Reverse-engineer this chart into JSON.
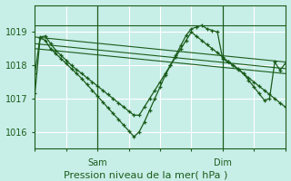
{
  "bg_color": "#c8eee8",
  "grid_color": "#ffffff",
  "line_color": "#1a5c1a",
  "marker_color": "#1a5c1a",
  "xlabel": "Pression niveau de la mer( hPa )",
  "xlabel_fontsize": 8,
  "yticks": [
    1016,
    1017,
    1018,
    1019
  ],
  "ylim": [
    1015.5,
    1019.8
  ],
  "xlim": [
    0,
    48
  ],
  "sam_x": 12,
  "dim_x": 36,
  "main_series": {
    "x": [
      0,
      1,
      2,
      3,
      4,
      5,
      6,
      7,
      8,
      9,
      10,
      11,
      12,
      13,
      14,
      15,
      16,
      17,
      18,
      19,
      20,
      21,
      22,
      23,
      24,
      25,
      26,
      27,
      28,
      29,
      30,
      31,
      32,
      33,
      34,
      35,
      36,
      37,
      38,
      39,
      40,
      41,
      42,
      43,
      44,
      45,
      46,
      47,
      48
    ],
    "y1": [
      1017.15,
      1018.82,
      1018.75,
      1018.5,
      1018.35,
      1018.2,
      1018.05,
      1017.9,
      1017.75,
      1017.6,
      1017.42,
      1017.25,
      1017.07,
      1016.9,
      1016.72,
      1016.55,
      1016.38,
      1016.2,
      1016.03,
      1015.85,
      1016.0,
      1016.3,
      1016.65,
      1017.0,
      1017.35,
      1017.7,
      1018.0,
      1018.3,
      1018.6,
      1018.9,
      1019.1,
      1019.15,
      1019.2,
      1019.1,
      1019.05,
      1019.0,
      1018.2,
      1018.1,
      1018.0,
      1017.9,
      1017.75,
      1017.55,
      1017.35,
      1017.15,
      1016.95,
      1017.0,
      1018.1,
      1017.85,
      1018.05
    ],
    "y2": [
      1017.75,
      1018.85,
      1018.88,
      1018.65,
      1018.45,
      1018.3,
      1018.15,
      1018.0,
      1017.87,
      1017.75,
      1017.62,
      1017.5,
      1017.38,
      1017.25,
      1017.12,
      1017.0,
      1016.87,
      1016.75,
      1016.62,
      1016.5,
      1016.5,
      1016.75,
      1017.0,
      1017.25,
      1017.5,
      1017.75,
      1018.0,
      1018.25,
      1018.5,
      1018.75,
      1019.0,
      1018.87,
      1018.75,
      1018.62,
      1018.5,
      1018.38,
      1018.25,
      1018.12,
      1018.0,
      1017.87,
      1017.75,
      1017.62,
      1017.5,
      1017.37,
      1017.25,
      1017.12,
      1017.0,
      1016.87,
      1016.75
    ]
  },
  "straight_lines": [
    {
      "x": [
        0,
        48
      ],
      "y": [
        1019.2,
        1019.2
      ]
    },
    {
      "x": [
        0,
        48
      ],
      "y": [
        1018.85,
        1018.1
      ]
    },
    {
      "x": [
        0,
        48
      ],
      "y": [
        1018.65,
        1017.9
      ]
    },
    {
      "x": [
        0,
        48
      ],
      "y": [
        1018.5,
        1017.75
      ]
    }
  ]
}
